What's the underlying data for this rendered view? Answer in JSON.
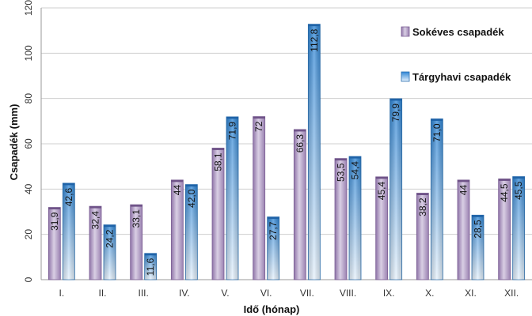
{
  "chart_data": {
    "type": "bar",
    "title": "",
    "xlabel": "Idő (hónap)",
    "ylabel": "Csapadék (mm)",
    "ylim": [
      0,
      120
    ],
    "yticks": [
      "0",
      "20",
      "40",
      "60",
      "80",
      "100",
      "120"
    ],
    "grid": true,
    "legend_position": "right",
    "categories": [
      "I.",
      "II.",
      "III.",
      "IV.",
      "V.",
      "VI.",
      "VII.",
      "VIII.",
      "IX.",
      "X.",
      "XI.",
      "XII."
    ],
    "series": [
      {
        "name": "Sokéves csapadék",
        "color": "#a58bbb",
        "values": [
          31.9,
          32.4,
          33.1,
          44,
          58.1,
          72,
          66.3,
          53.5,
          45.4,
          38.2,
          44,
          44.5
        ],
        "labels": [
          "31,9",
          "32,4",
          "33,1",
          "44",
          "58,1",
          "72",
          "66,3",
          "53,5",
          "45,4",
          "38,2",
          "44",
          "44,5"
        ]
      },
      {
        "name": "Tárgyhavi csapadék",
        "color": "#3d8fd9",
        "values": [
          42.6,
          24.2,
          11.6,
          42.0,
          71.9,
          27.7,
          112.8,
          54.4,
          79.9,
          71.0,
          28.5,
          45.5
        ],
        "labels": [
          "42,6",
          "24,2",
          "11,6",
          "42,0",
          "71,9",
          "27,7",
          "112,8",
          "54,4",
          "79,9",
          "71,0",
          "28,5",
          "45,5"
        ]
      }
    ]
  }
}
